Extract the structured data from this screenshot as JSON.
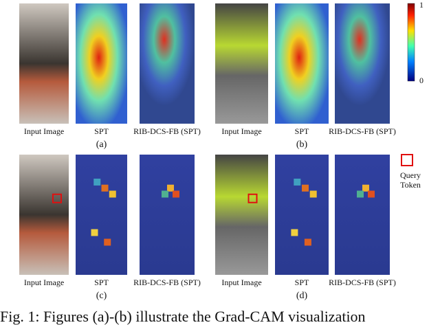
{
  "panels": [
    {
      "label": "(a)",
      "captions": [
        "Input Image",
        "SPT",
        "RIB-DCS-FB (SPT)"
      ]
    },
    {
      "label": "(b)",
      "captions": [
        "Input Image",
        "SPT",
        "RIB-DCS-FB (SPT)"
      ]
    },
    {
      "label": "(c)",
      "captions": [
        "Input Image",
        "SPT",
        "RIB-DCS-FB (SPT)"
      ]
    },
    {
      "label": "(d)",
      "captions": [
        "Input Image",
        "SPT",
        "RIB-DCS-FB (SPT)"
      ]
    }
  ],
  "colorbar": {
    "top": "1",
    "bottom": "0"
  },
  "query_token": [
    "Query",
    "Token"
  ],
  "caption": "Fig. 1: Figures (a)-(b) illustrate the Grad-CAM visualization"
}
